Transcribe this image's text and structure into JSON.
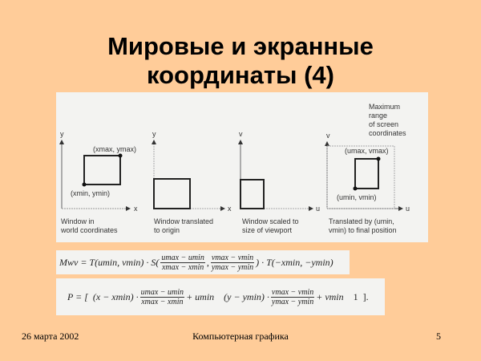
{
  "slide": {
    "title_line1": "Мировые и экранные",
    "title_line2": "координаты (4)"
  },
  "figure": {
    "panels": [
      {
        "axis_y": "y",
        "axis_x": "x",
        "corner_max": "(xmax, ymax)",
        "corner_min": "(xmin, ymin)",
        "caption_line1": "Window in",
        "caption_line2": "world coordinates"
      },
      {
        "axis_y": "y",
        "axis_x": "x",
        "caption_line1": "Window translated",
        "caption_line2": "to origin"
      },
      {
        "axis_y": "v",
        "axis_x": "u",
        "caption_line1": "Window scaled to",
        "caption_line2": "size of viewport"
      },
      {
        "axis_y": "v",
        "axis_x": "u",
        "corner_max": "(umax, vmax)",
        "corner_min": "(umin, vmin)",
        "caption_line1": "Translated by (umin,",
        "caption_line2": "vmin) to final position"
      }
    ],
    "note_line1": "Maximum",
    "note_line2": "range",
    "note_line3": "of screen",
    "note_line4": "coordinates"
  },
  "formulas": {
    "f1": {
      "lhs": "Mwv = T(umin, vmin) · S(",
      "frac1_num": "umax − umin",
      "frac1_den": "xmax − xmin",
      "frac2_num": "vmax − vmin",
      "frac2_den": "ymax − ymin",
      "rhs": ") · T(−xmin, −ymin)"
    },
    "f2": {
      "lhs": "P = [",
      "term1": "(x − xmin) ·",
      "frac1_num": "umax − umin",
      "frac1_den": "xmax − xmin",
      "term2": "+ umin",
      "term3": "(y − ymin) ·",
      "frac2_num": "vmax − vmin",
      "frac2_den": "ymax − ymin",
      "term4": "+ vmin",
      "term5": "1",
      "rhs": "]."
    }
  },
  "footer": {
    "date": "26 марта 2002",
    "course": "Компьютерная графика",
    "page": "5"
  },
  "colors": {
    "background": "#FFCC99",
    "panel": "#f3f3f1"
  }
}
